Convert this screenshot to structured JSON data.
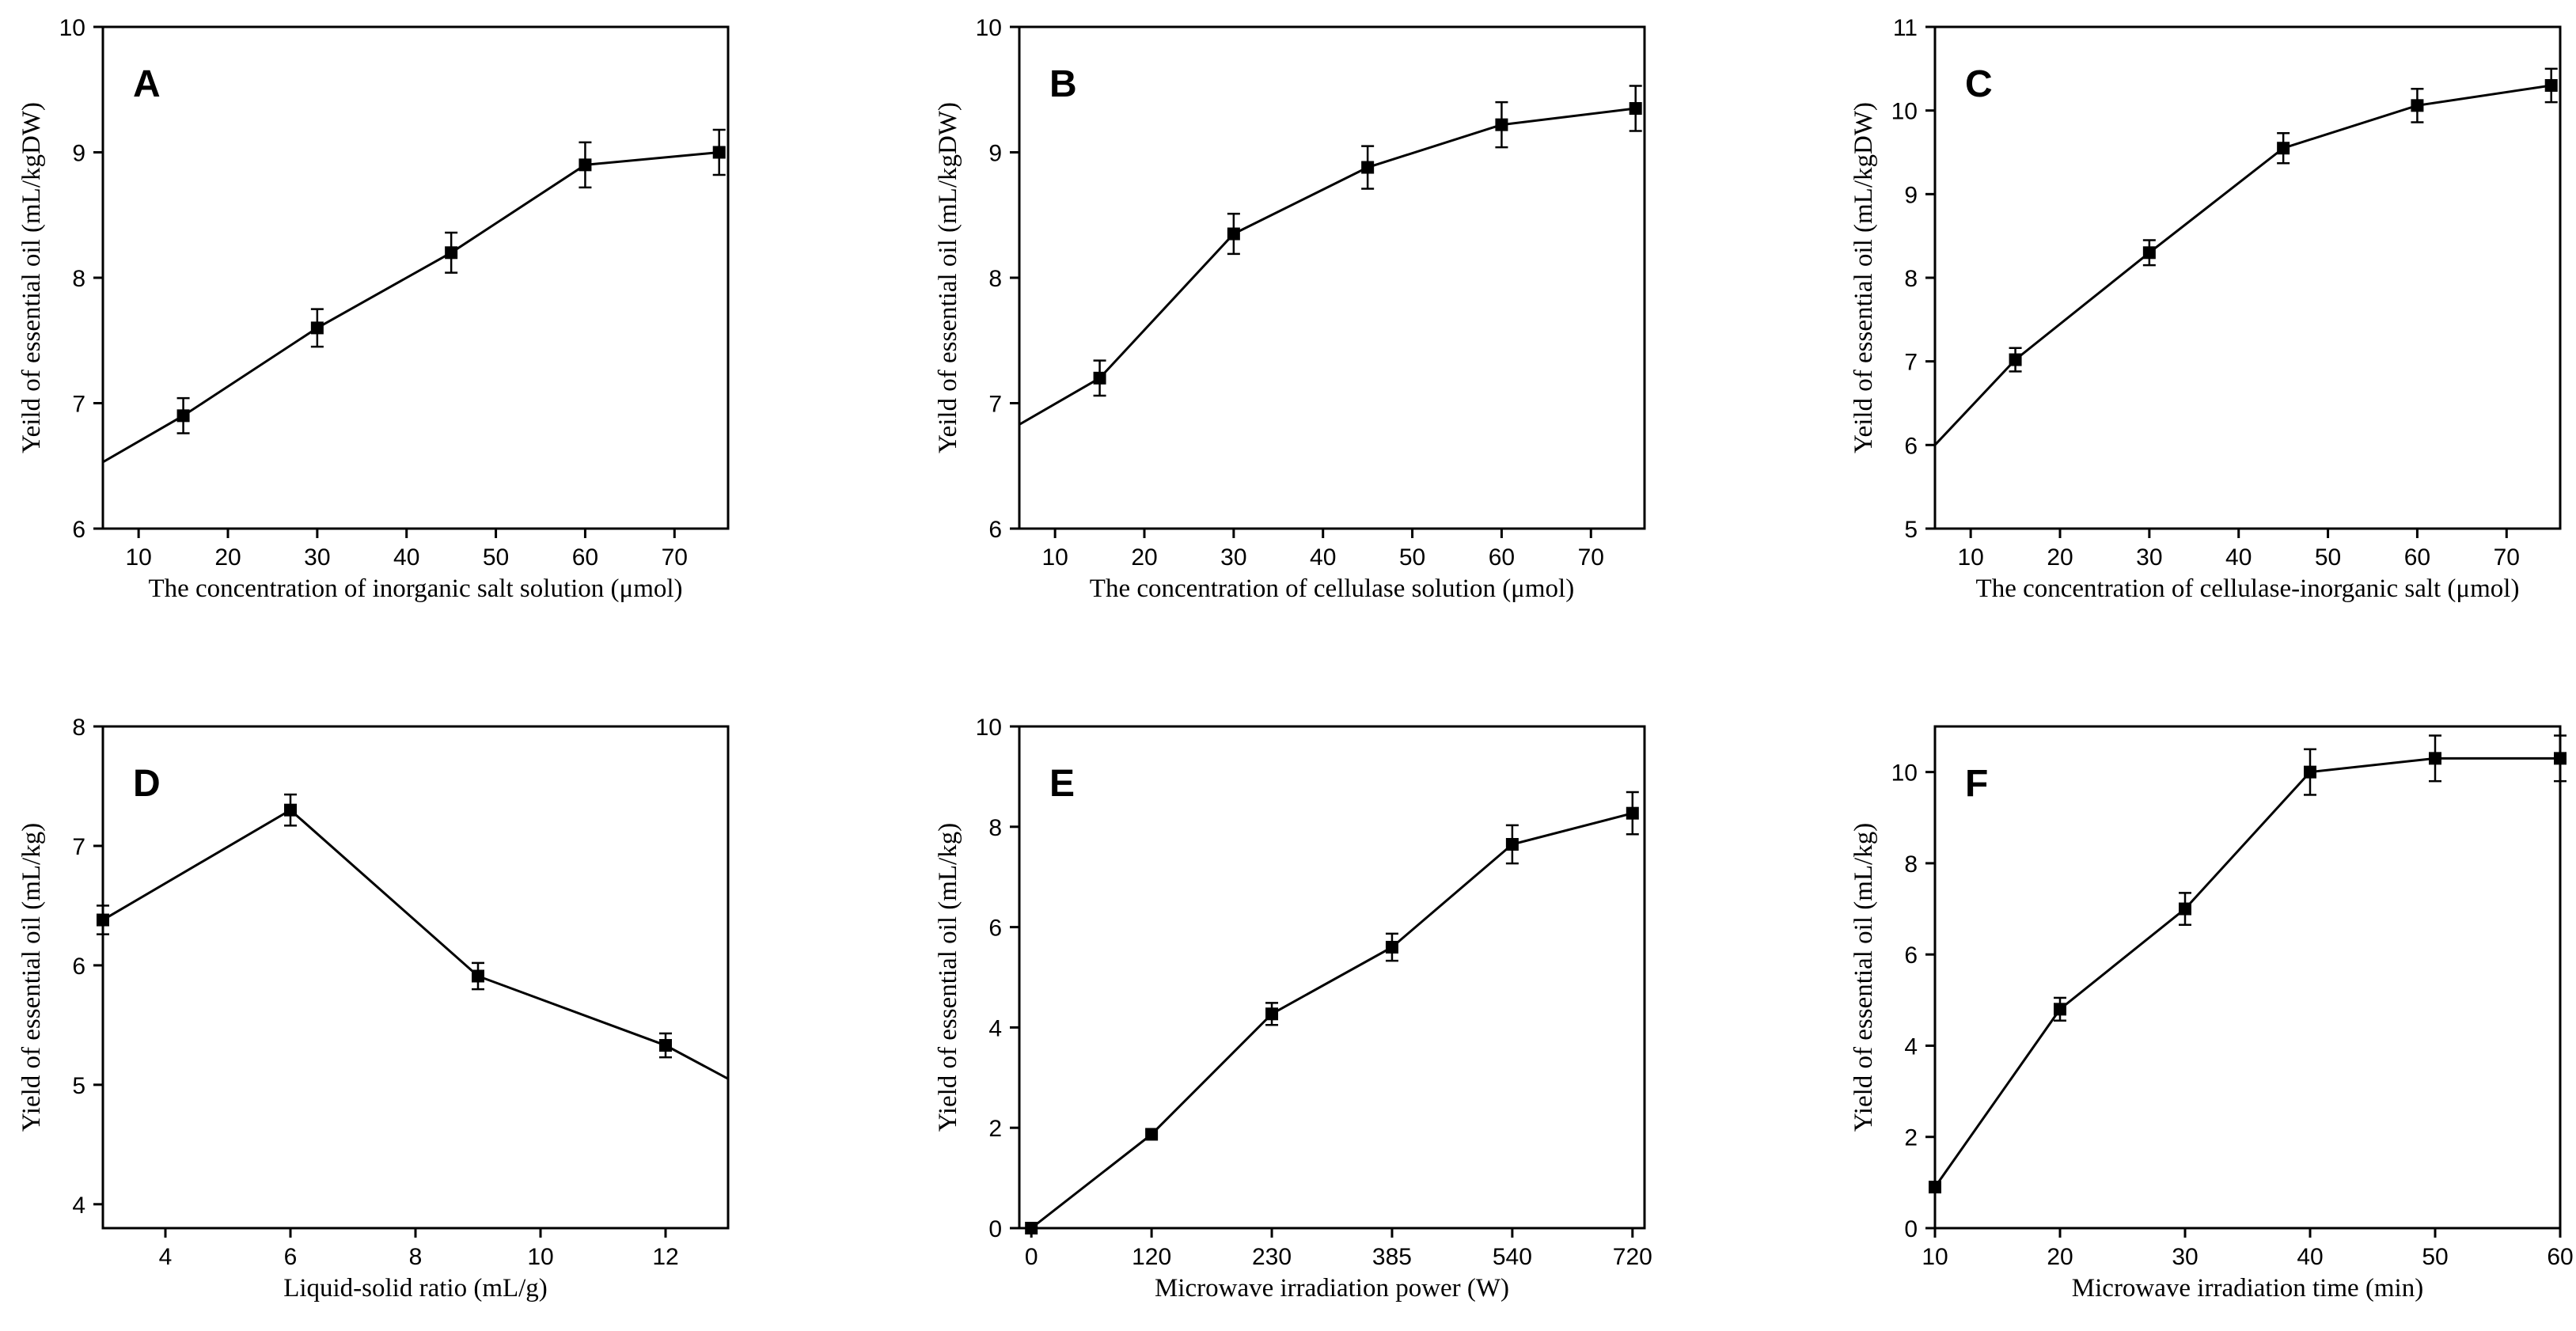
{
  "chart_data": [
    {
      "type": "line",
      "panel_label": "A",
      "xlabel": "The concentration of inorganic salt solution  (μmol)",
      "ylabel": "Yeild of essential oil (mL/kgDW)",
      "xlim": [
        6,
        76
      ],
      "ylim": [
        6,
        10
      ],
      "x_ticks": [
        10,
        20,
        30,
        40,
        50,
        60,
        70
      ],
      "x_tick_labels": [
        "10",
        "20",
        "30",
        "40",
        "50",
        "60",
        "70"
      ],
      "y_ticks": [
        6,
        7,
        8,
        9,
        10
      ],
      "y_tick_labels": [
        "6",
        "7",
        "8",
        "9",
        "10"
      ],
      "line_start": [
        6,
        6.53
      ],
      "x": [
        15,
        30,
        45,
        60,
        75
      ],
      "values": [
        6.9,
        7.6,
        8.2,
        8.9,
        9.0
      ],
      "errors": [
        0.14,
        0.15,
        0.16,
        0.18,
        0.18
      ]
    },
    {
      "type": "line",
      "panel_label": "B",
      "xlabel": "The concentration of  cellulase solution (μmol)",
      "ylabel": "Yeild of essential oil (mL/kgDW)",
      "xlim": [
        6,
        76
      ],
      "ylim": [
        6,
        10
      ],
      "x_ticks": [
        10,
        20,
        30,
        40,
        50,
        60,
        70
      ],
      "x_tick_labels": [
        "10",
        "20",
        "30",
        "40",
        "50",
        "60",
        "70"
      ],
      "y_ticks": [
        6,
        7,
        8,
        9,
        10
      ],
      "y_tick_labels": [
        "6",
        "7",
        "8",
        "9",
        "10"
      ],
      "line_start": [
        6,
        6.83
      ],
      "x": [
        15,
        30,
        45,
        60,
        75
      ],
      "values": [
        7.2,
        8.35,
        8.88,
        9.22,
        9.35
      ],
      "errors": [
        0.14,
        0.16,
        0.17,
        0.18,
        0.18
      ]
    },
    {
      "type": "line",
      "panel_label": "C",
      "xlabel": "The concentration of cellulase-inorganic salt (μmol)",
      "ylabel": "Yeild of essential oil (mL/kgDW)",
      "xlim": [
        6,
        76
      ],
      "ylim": [
        5,
        11
      ],
      "x_ticks": [
        10,
        20,
        30,
        40,
        50,
        60,
        70
      ],
      "x_tick_labels": [
        "10",
        "20",
        "30",
        "40",
        "50",
        "60",
        "70"
      ],
      "y_ticks": [
        5,
        6,
        7,
        8,
        9,
        10,
        11
      ],
      "y_tick_labels": [
        "5",
        "6",
        "7",
        "8",
        "9",
        "10",
        "11"
      ],
      "line_start": [
        6,
        6.0
      ],
      "x": [
        15,
        30,
        45,
        60,
        75
      ],
      "values": [
        7.02,
        8.3,
        9.55,
        10.06,
        10.3
      ],
      "errors": [
        0.14,
        0.15,
        0.18,
        0.2,
        0.2
      ]
    },
    {
      "type": "line",
      "panel_label": "D",
      "xlabel": "Liquid-solid ratio (mL/g)",
      "ylabel": "Yield of essential oil (mL/kg)",
      "xlim": [
        3,
        13
      ],
      "ylim": [
        3.8,
        8
      ],
      "x_ticks": [
        4,
        6,
        8,
        10,
        12
      ],
      "x_tick_labels": [
        "4",
        "6",
        "8",
        "10",
        "12"
      ],
      "y_ticks": [
        4,
        5,
        6,
        7,
        8
      ],
      "y_tick_labels": [
        "4",
        "5",
        "6",
        "7",
        "8"
      ],
      "line_end": [
        13,
        5.05
      ],
      "x": [
        3,
        6,
        9,
        12
      ],
      "values": [
        6.38,
        7.3,
        5.91,
        5.33
      ],
      "errors": [
        0.12,
        0.13,
        0.11,
        0.1
      ]
    },
    {
      "type": "line",
      "panel_label": "E",
      "xlabel": "Microwave irradiation power (W)",
      "ylabel": "Yield of essential oil (mL/kg)",
      "scale": "categorical",
      "xlim": [
        -0.1,
        5.1
      ],
      "ylim": [
        0,
        10
      ],
      "x_ticks": [
        0,
        1,
        2,
        3,
        4,
        5
      ],
      "x_tick_labels": [
        "0",
        "120",
        "230",
        "385",
        "540",
        "720"
      ],
      "y_ticks": [
        0,
        2,
        4,
        6,
        8,
        10
      ],
      "y_tick_labels": [
        "0",
        "2",
        "4",
        "6",
        "8",
        "10"
      ],
      "x": [
        0,
        1,
        2,
        3,
        4,
        5
      ],
      "values": [
        0,
        1.87,
        4.27,
        5.6,
        7.65,
        8.27
      ],
      "errors": [
        0,
        0,
        0.22,
        0.27,
        0.38,
        0.42
      ]
    },
    {
      "type": "line",
      "panel_label": "F",
      "xlabel": "Microwave irradiation time (min)",
      "ylabel": "Yield of essential oil (mL/kg)",
      "xlim": [
        10,
        60
      ],
      "ylim": [
        0,
        11
      ],
      "x_ticks": [
        10,
        20,
        30,
        40,
        50,
        60
      ],
      "x_tick_labels": [
        "10",
        "20",
        "30",
        "40",
        "50",
        "60"
      ],
      "y_ticks": [
        0,
        2,
        4,
        6,
        8,
        10
      ],
      "y_tick_labels": [
        "0",
        "2",
        "4",
        "6",
        "8",
        "10"
      ],
      "x": [
        10,
        20,
        30,
        40,
        50,
        60
      ],
      "values": [
        0.9,
        4.8,
        7.0,
        10.0,
        10.3,
        10.3
      ],
      "errors": [
        0,
        0.25,
        0.35,
        0.5,
        0.5,
        0.5
      ]
    }
  ]
}
